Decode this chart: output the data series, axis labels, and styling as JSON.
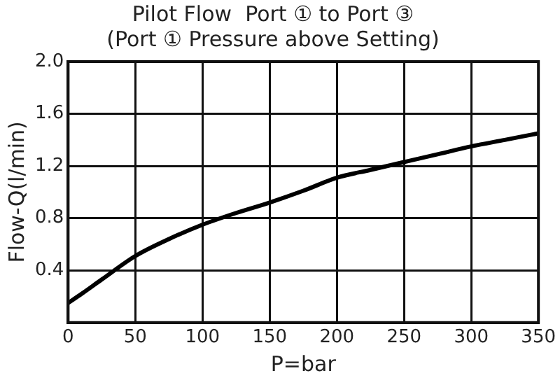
{
  "chart_data": {
    "type": "line",
    "title": "Pilot Flow  Port ① to Port ③\n(Port ① Pressure above Setting)",
    "xlabel": "P=bar",
    "ylabel": "Flow-Q(l/min)",
    "x": [
      0,
      10,
      25,
      50,
      75,
      100,
      125,
      150,
      175,
      200,
      225,
      250,
      275,
      300,
      325,
      350
    ],
    "series": [
      {
        "color": "#000000",
        "values": [
          0.15,
          0.22,
          0.33,
          0.51,
          0.64,
          0.75,
          0.84,
          0.92,
          1.01,
          1.11,
          1.17,
          1.23,
          1.29,
          1.35,
          1.4,
          1.45
        ]
      }
    ],
    "xlim": [
      0,
      350
    ],
    "xticks": [
      0,
      50,
      100,
      150,
      200,
      250,
      300,
      350
    ],
    "ylim": [
      0,
      2
    ],
    "yticks": [
      {
        "value": 0,
        "label": null
      },
      0.4,
      0.8,
      1.2,
      1.6,
      {
        "value": 2,
        "label": "2.0"
      }
    ],
    "grid": true,
    "legend": false,
    "marker": "none",
    "line_style": "solid"
  }
}
